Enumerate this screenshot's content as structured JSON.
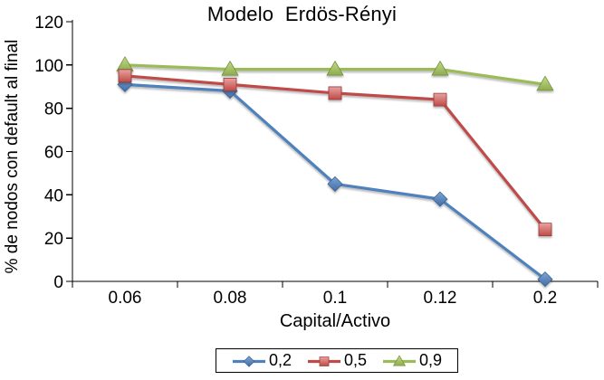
{
  "chart_data": {
    "type": "line",
    "title": "Modelo  Erdös-Rényi",
    "xlabel": "Capital/Activo",
    "ylabel": "% de nodos con default al final",
    "categories": [
      "0.06",
      "0.08",
      "0.1",
      "0.12",
      "0.2"
    ],
    "series": [
      {
        "name": "0,2",
        "marker": "diamond",
        "line_color": "#4f81bd",
        "marker_gradient": [
          "#7fa5d3",
          "#3e6da8"
        ],
        "marker_edge": "#3a618f",
        "values": [
          91,
          88,
          45,
          38,
          1
        ]
      },
      {
        "name": "0,5",
        "marker": "square",
        "line_color": "#be4b48",
        "marker_gradient": [
          "#e8a3a1",
          "#c04a46"
        ],
        "marker_edge": "#9a3a38",
        "values": [
          95,
          91,
          87,
          84,
          24
        ]
      },
      {
        "name": "0,9",
        "marker": "triangle",
        "line_color": "#9bbb59",
        "marker_gradient": [
          "#c6da8c",
          "#8dac4c"
        ],
        "marker_edge": "#74923c",
        "values": [
          100,
          98,
          98,
          98,
          91
        ]
      }
    ],
    "ylim": [
      0,
      120
    ],
    "yticks": [
      0,
      20,
      40,
      60,
      80,
      100,
      120
    ],
    "grid": false,
    "legend_position": "bottom",
    "background": "#ffffff",
    "axis_color": "#000000"
  }
}
